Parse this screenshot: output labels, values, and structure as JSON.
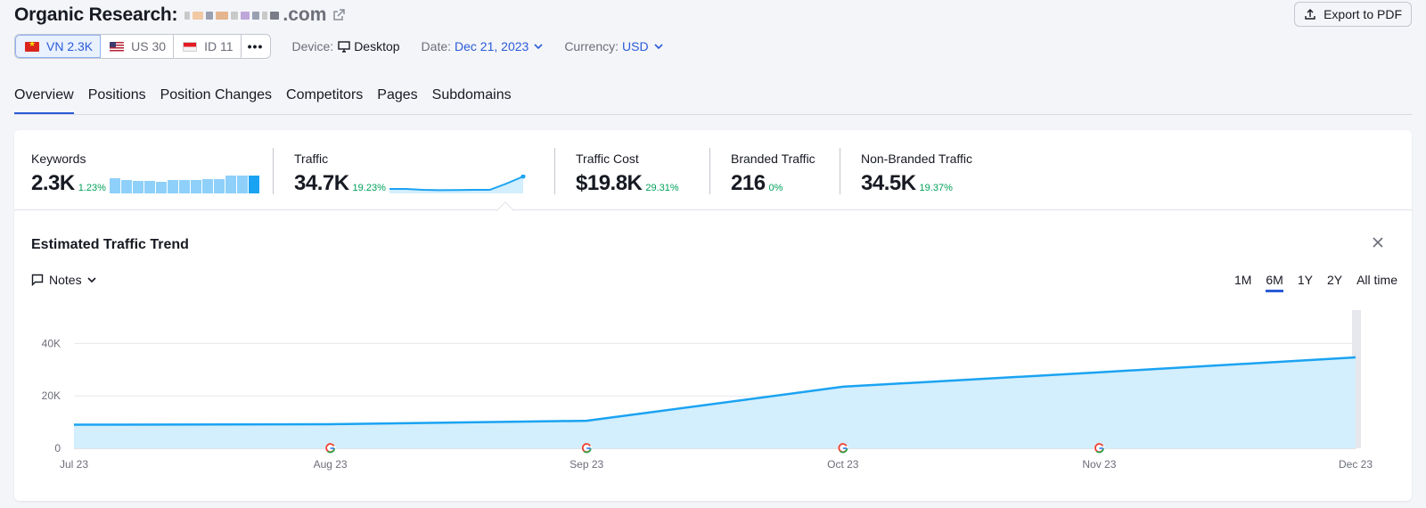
{
  "header": {
    "title": "Organic Research:",
    "domain_suffix": ".com",
    "export_label": "Export to PDF"
  },
  "databases": [
    {
      "code": "VN",
      "count": "2.3K",
      "label": "VN 2.3K",
      "active": true
    },
    {
      "code": "US",
      "count": "30",
      "label": "US 30",
      "active": false
    },
    {
      "code": "ID",
      "count": "11",
      "label": "ID 11",
      "active": false
    }
  ],
  "more_label": "•••",
  "controls": {
    "device_label": "Device:",
    "device_value": "Desktop",
    "date_label": "Date:",
    "date_value": "Dec 21, 2023",
    "currency_label": "Currency:",
    "currency_value": "USD"
  },
  "tabs": [
    {
      "label": "Overview",
      "active": true
    },
    {
      "label": "Positions",
      "active": false
    },
    {
      "label": "Position Changes",
      "active": false
    },
    {
      "label": "Competitors",
      "active": false
    },
    {
      "label": "Pages",
      "active": false
    },
    {
      "label": "Subdomains",
      "active": false
    }
  ],
  "metrics": {
    "keywords": {
      "label": "Keywords",
      "value": "2.3K",
      "delta": "1.23%"
    },
    "traffic": {
      "label": "Traffic",
      "value": "34.7K",
      "delta": "19.23%"
    },
    "traffic_cost": {
      "label": "Traffic Cost",
      "value": "$19.8K",
      "delta": "29.31%"
    },
    "branded": {
      "label": "Branded Traffic",
      "value": "216",
      "delta": "0%"
    },
    "non_branded": {
      "label": "Non-Branded Traffic",
      "value": "34.5K",
      "delta": "19.37%"
    }
  },
  "keyword_sparkline": [
    0.85,
    0.75,
    0.7,
    0.7,
    0.65,
    0.75,
    0.75,
    0.75,
    0.8,
    0.8,
    1.0,
    1.0,
    1.0
  ],
  "traffic_sparkline": [
    0.25,
    0.25,
    0.2,
    0.18,
    0.19,
    0.2,
    0.2,
    0.55,
    0.95
  ],
  "trend": {
    "title": "Estimated Traffic Trend",
    "notes_label": "Notes",
    "ranges": [
      {
        "label": "1M",
        "active": false
      },
      {
        "label": "6M",
        "active": true
      },
      {
        "label": "1Y",
        "active": false
      },
      {
        "label": "2Y",
        "active": false
      },
      {
        "label": "All time",
        "active": false
      }
    ]
  },
  "colors": {
    "accent": "#2a5bd7",
    "series": "#1aa3f2",
    "area": "#d3eefc",
    "positive": "#00a15a"
  },
  "chart_data": {
    "type": "area",
    "x": [
      "Jul 23",
      "Aug 23",
      "Sep 23",
      "Oct 23",
      "Nov 23",
      "Dec 23"
    ],
    "series": [
      {
        "values": [
          9000,
          9200,
          10500,
          23500,
          29000,
          34700
        ]
      }
    ],
    "yticks": [
      0,
      20000,
      40000
    ],
    "ytick_labels": [
      "0",
      "20K",
      "40K"
    ],
    "ylim": [
      0,
      50000
    ],
    "google_update_markers": [
      "Aug 23",
      "Sep 23",
      "Oct 23",
      "Nov 23"
    ],
    "grid": true,
    "title": "",
    "xlabel": "",
    "ylabel": ""
  }
}
